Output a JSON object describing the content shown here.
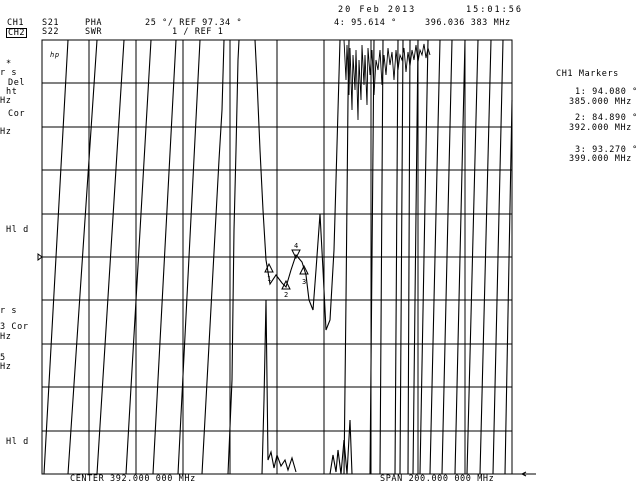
{
  "header": {
    "date": "20 Feb 2013",
    "time": "15:01:56",
    "ch1": {
      "label": "CH1",
      "param": "S21",
      "format": "PHA",
      "scale": "25 °/ REF 97.34 °"
    },
    "ch2": {
      "label": "CH2",
      "param": "S22",
      "format": "SWR",
      "scale": "1 / REF 1"
    },
    "active_marker": {
      "readout": "4: 95.614 °",
      "frequency": "396.036 383 MHz"
    }
  },
  "logo": "hp",
  "left_annotations": [
    "*",
    "r s",
    "Del",
    "ht",
    "Hz",
    "Cor",
    "Hz",
    "Hl d",
    "r s",
    "3 Cor",
    "Hz",
    "5",
    "Hz",
    "Hl d"
  ],
  "marker_panel": {
    "title": "CH1 Markers",
    "markers": [
      {
        "value": "1: 94.080 °",
        "freq": "385.000 MHz"
      },
      {
        "value": "2: 84.890 °",
        "freq": "392.000 MHz"
      },
      {
        "value": "3: 93.270 °",
        "freq": "399.000 MHz"
      }
    ]
  },
  "plot_marker_labels": [
    "1",
    "2",
    "3",
    "4"
  ],
  "footer": {
    "center": "CENTER 392.000 000 MHz",
    "span": "SPAN 200.000 000 MHz"
  }
}
